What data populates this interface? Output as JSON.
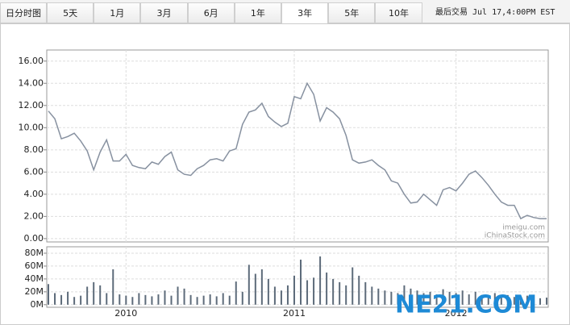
{
  "tabs": [
    "日分时图",
    "5天",
    "1月",
    "3月",
    "6月",
    "1年",
    "3年",
    "5年",
    "10年"
  ],
  "selected_tab": 6,
  "last_trade": "最后交易 Jul 17,4:00PM EST",
  "overlay_watermark": "NE21.COM",
  "chart_data": [
    {
      "type": "line",
      "color": "#8791a0",
      "grid": true,
      "watermarks": [
        "imeigu.com",
        "iChinaStock.com"
      ],
      "ylim": [
        -0.3,
        17
      ],
      "yticks": [
        {
          "value": 0,
          "label": "0.00"
        },
        {
          "value": 2,
          "label": "2.00"
        },
        {
          "value": 4,
          "label": "4.00"
        },
        {
          "value": 6,
          "label": "6.00"
        },
        {
          "value": 8,
          "label": "8.00"
        },
        {
          "value": 10,
          "label": "10.00"
        },
        {
          "value": 12,
          "label": "12.00"
        },
        {
          "value": 14,
          "label": "14.00"
        },
        {
          "value": 16,
          "label": "16.00"
        }
      ],
      "values": [
        11.5,
        10.8,
        9.0,
        9.2,
        9.5,
        8.8,
        7.9,
        6.2,
        7.8,
        8.9,
        7.0,
        7.0,
        7.6,
        6.6,
        6.4,
        6.3,
        6.9,
        6.7,
        7.4,
        7.8,
        6.2,
        5.8,
        5.7,
        6.3,
        6.6,
        7.1,
        7.2,
        7.0,
        7.9,
        8.1,
        10.3,
        11.4,
        11.6,
        12.2,
        11.0,
        10.5,
        10.1,
        10.4,
        12.8,
        12.6,
        14.0,
        13.0,
        10.6,
        11.8,
        11.4,
        10.8,
        9.3,
        7.1,
        6.8,
        6.9,
        7.1,
        6.6,
        6.2,
        5.2,
        5.0,
        4.0,
        3.2,
        3.3,
        4.0,
        3.5,
        3.0,
        4.4,
        4.6,
        4.3,
        5.0,
        5.8,
        6.1,
        5.5,
        4.8,
        4.0,
        3.3,
        3.0,
        3.0,
        1.8,
        2.1,
        1.9,
        1.8,
        1.8
      ]
    },
    {
      "type": "bar",
      "color": "#5d6b7a",
      "grid": true,
      "ylim": [
        -4,
        90
      ],
      "yticks": [
        {
          "value": 0,
          "label": "0M"
        },
        {
          "value": 20,
          "label": "20M"
        },
        {
          "value": 40,
          "label": "40M"
        },
        {
          "value": 60,
          "label": "60M"
        },
        {
          "value": 80,
          "label": "80M"
        }
      ],
      "categories": [
        null,
        null,
        null,
        null,
        null,
        null,
        null,
        null,
        null,
        null,
        null,
        null,
        "2010",
        null,
        null,
        null,
        null,
        null,
        null,
        null,
        null,
        null,
        null,
        null,
        null,
        null,
        null,
        null,
        null,
        null,
        null,
        null,
        null,
        null,
        null,
        null,
        null,
        null,
        "2011",
        null,
        null,
        null,
        null,
        null,
        null,
        null,
        null,
        null,
        null,
        null,
        null,
        null,
        null,
        null,
        null,
        null,
        null,
        null,
        null,
        null,
        null,
        null,
        null,
        "2012",
        null,
        null,
        null,
        null,
        null,
        null,
        null,
        null,
        null,
        null,
        null,
        null,
        null,
        null
      ],
      "values": [
        32,
        18,
        15,
        20,
        12,
        14,
        28,
        35,
        30,
        18,
        55,
        16,
        14,
        12,
        18,
        15,
        13,
        16,
        22,
        14,
        28,
        25,
        15,
        12,
        14,
        16,
        13,
        18,
        14,
        36,
        20,
        62,
        48,
        55,
        40,
        28,
        22,
        30,
        45,
        70,
        38,
        42,
        75,
        50,
        40,
        35,
        30,
        58,
        45,
        35,
        28,
        25,
        22,
        20,
        18,
        30,
        25,
        22,
        18,
        20,
        16,
        24,
        20,
        18,
        22,
        16,
        20,
        15,
        14,
        18,
        12,
        15,
        12,
        10,
        14,
        12,
        10,
        11
      ]
    }
  ]
}
